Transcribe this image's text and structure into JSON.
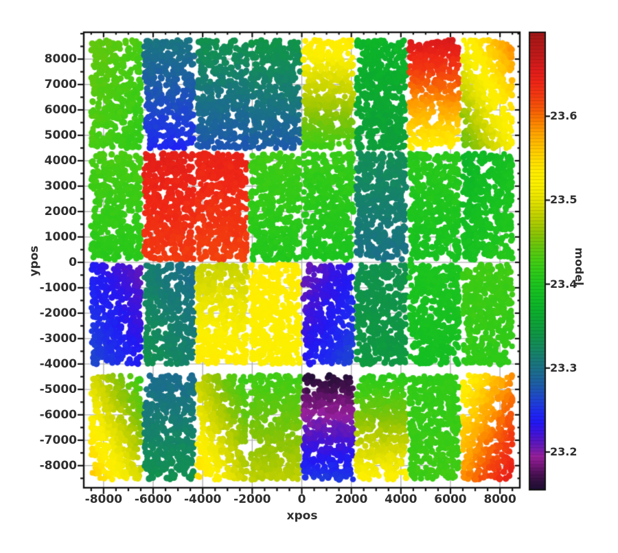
{
  "figure": {
    "background": "#ffffff"
  },
  "chart_data": {
    "type": "scatter",
    "title": "",
    "xlabel": "xpos",
    "ylabel": "ypos",
    "xlim": [
      -8800,
      8800
    ],
    "ylim": [
      -8870,
      9055
    ],
    "xticks": [
      -8000,
      -6000,
      -4000,
      -2000,
      0,
      2000,
      4000,
      6000,
      8000
    ],
    "yticks": [
      8000,
      7000,
      6000,
      5000,
      4000,
      3000,
      2000,
      1000,
      0,
      -1000,
      -2000,
      -3000,
      -4000,
      -5000,
      -6000,
      -7000,
      -8000
    ],
    "minor_tick_step": 500,
    "grid": true,
    "grid_color": "#b0b0b0",
    "marker_diameter_px": 9,
    "colorbar": {
      "label": "model",
      "min": 23.155,
      "max": 23.7,
      "ticks": [
        23.6,
        23.5,
        23.4,
        23.3,
        23.2
      ]
    },
    "colormap_stops": [
      [
        23.155,
        "#1c0e33"
      ],
      [
        23.165,
        "#31103f"
      ],
      [
        23.175,
        "#4e1157"
      ],
      [
        23.185,
        "#77177c"
      ],
      [
        23.195,
        "#97209b"
      ],
      [
        23.205,
        "#6f1bb0"
      ],
      [
        23.215,
        "#5315c5"
      ],
      [
        23.225,
        "#3a14e0"
      ],
      [
        23.235,
        "#2318f2"
      ],
      [
        23.245,
        "#1f25f2"
      ],
      [
        23.255,
        "#1e38e0"
      ],
      [
        23.265,
        "#1e48cc"
      ],
      [
        23.28,
        "#1d5ca8"
      ],
      [
        23.295,
        "#1c6c8f"
      ],
      [
        23.31,
        "#187a76"
      ],
      [
        23.325,
        "#148a5d"
      ],
      [
        23.34,
        "#109546"
      ],
      [
        23.355,
        "#0da336"
      ],
      [
        23.37,
        "#0cb12b"
      ],
      [
        23.385,
        "#12bc24"
      ],
      [
        23.4,
        "#1cc41e"
      ],
      [
        23.415,
        "#2fca18"
      ],
      [
        23.43,
        "#47cc12"
      ],
      [
        23.445,
        "#66c60d"
      ],
      [
        23.46,
        "#8cc406"
      ],
      [
        23.475,
        "#b1cc02"
      ],
      [
        23.49,
        "#d2d800"
      ],
      [
        23.505,
        "#ece600"
      ],
      [
        23.52,
        "#fcf000"
      ],
      [
        23.535,
        "#ffec00"
      ],
      [
        23.55,
        "#ffd900"
      ],
      [
        23.565,
        "#ffc000"
      ],
      [
        23.58,
        "#ffa300"
      ],
      [
        23.595,
        "#fb7d00"
      ],
      [
        23.61,
        "#f65708"
      ],
      [
        23.625,
        "#f23a10"
      ],
      [
        23.64,
        "#ee2616"
      ],
      [
        23.655,
        "#de1c1a"
      ],
      [
        23.67,
        "#c41a1a"
      ],
      [
        23.7,
        "#a01616"
      ]
    ],
    "columns_x": [
      [
        -8495,
        -6485
      ],
      [
        -6355,
        -4345
      ],
      [
        -4215,
        -2205
      ],
      [
        -2075,
        -65
      ],
      [
        65,
        2075
      ],
      [
        2205,
        4215
      ],
      [
        4345,
        6355
      ],
      [
        6485,
        8495
      ]
    ],
    "rows_y": [
      [
        4490,
        8740
      ],
      [
        90,
        4290
      ],
      [
        -4010,
        -90
      ],
      [
        -8550,
        -4450
      ]
    ],
    "patches": [
      {
        "row": 0,
        "col": 0,
        "model_start": 23.445,
        "model_end": 23.415,
        "dir": "tl-br"
      },
      {
        "row": 0,
        "col": 1,
        "model_start": 23.305,
        "model_end": 23.245,
        "dir": "top-bottom"
      },
      {
        "row": 0,
        "col": 2,
        "model_start": 23.335,
        "model_end": 23.275,
        "dir": "top-bottom"
      },
      {
        "row": 0,
        "col": 3,
        "model_start": 23.34,
        "model_end": 23.28,
        "dir": "top-bottom"
      },
      {
        "row": 0,
        "col": 4,
        "model_start": 23.535,
        "model_end": 23.425,
        "dir": "top-bottom"
      },
      {
        "row": 0,
        "col": 5,
        "model_start": 23.375,
        "model_end": 23.35,
        "dir": "top-bottom"
      },
      {
        "row": 0,
        "col": 6,
        "model_start": 23.66,
        "model_end": 23.53,
        "dir": "top-bottom"
      },
      {
        "row": 0,
        "col": 7,
        "model_start": 23.595,
        "model_end": 23.44,
        "dir": "tr-bl"
      },
      {
        "row": 1,
        "col": 0,
        "model_start": 23.43,
        "model_end": 23.41,
        "dir": "top-bottom"
      },
      {
        "row": 1,
        "col": 1,
        "model_start": 23.65,
        "model_end": 23.625,
        "dir": "top-bottom"
      },
      {
        "row": 1,
        "col": 2,
        "model_start": 23.645,
        "model_end": 23.62,
        "dir": "top-bottom"
      },
      {
        "row": 1,
        "col": 3,
        "model_start": 23.425,
        "model_end": 23.405,
        "dir": "top-bottom"
      },
      {
        "row": 1,
        "col": 4,
        "model_start": 23.42,
        "model_end": 23.4,
        "dir": "top-bottom"
      },
      {
        "row": 1,
        "col": 5,
        "model_start": 23.33,
        "model_end": 23.3,
        "dir": "top-bottom"
      },
      {
        "row": 1,
        "col": 6,
        "model_start": 23.41,
        "model_end": 23.395,
        "dir": "top-bottom"
      },
      {
        "row": 1,
        "col": 7,
        "model_start": 23.375,
        "model_end": 23.41,
        "dir": "tl-br"
      },
      {
        "row": 2,
        "col": 0,
        "model_start": 23.21,
        "model_end": 23.265,
        "dir": "tr-bl"
      },
      {
        "row": 2,
        "col": 1,
        "model_start": 23.295,
        "model_end": 23.335,
        "dir": "tr-bl"
      },
      {
        "row": 2,
        "col": 2,
        "model_start": 23.485,
        "model_end": 23.535,
        "dir": "top-bottom"
      },
      {
        "row": 2,
        "col": 3,
        "model_start": 23.535,
        "model_end": 23.52,
        "dir": "top-bottom"
      },
      {
        "row": 2,
        "col": 4,
        "model_start": 23.205,
        "model_end": 23.265,
        "dir": "tl-br"
      },
      {
        "row": 2,
        "col": 5,
        "model_start": 23.335,
        "model_end": 23.345,
        "dir": "top-bottom"
      },
      {
        "row": 2,
        "col": 6,
        "model_start": 23.4,
        "model_end": 23.39,
        "dir": "top-bottom"
      },
      {
        "row": 2,
        "col": 7,
        "model_start": 23.425,
        "model_end": 23.415,
        "dir": "top-bottom"
      },
      {
        "row": 3,
        "col": 0,
        "model_start": 23.42,
        "model_end": 23.565,
        "dir": "tr-bl"
      },
      {
        "row": 3,
        "col": 1,
        "model_start": 23.295,
        "model_end": 23.335,
        "dir": "top-bottom"
      },
      {
        "row": 3,
        "col": 2,
        "model_start": 23.415,
        "model_end": 23.55,
        "dir": "tr-bl"
      },
      {
        "row": 3,
        "col": 3,
        "model_start": 23.425,
        "model_end": 23.48,
        "dir": "top-bottom"
      },
      {
        "row": 3,
        "col": 4,
        "model_start": 23.16,
        "model_end": 23.255,
        "dir": "top-bottom"
      },
      {
        "row": 3,
        "col": 5,
        "model_start": 23.41,
        "model_end": 23.525,
        "dir": "top-bottom"
      },
      {
        "row": 3,
        "col": 6,
        "model_start": 23.415,
        "model_end": 23.425,
        "dir": "top-bottom"
      },
      {
        "row": 3,
        "col": 7,
        "model_start": 23.52,
        "model_end": 23.655,
        "dir": "tl-br"
      }
    ]
  }
}
